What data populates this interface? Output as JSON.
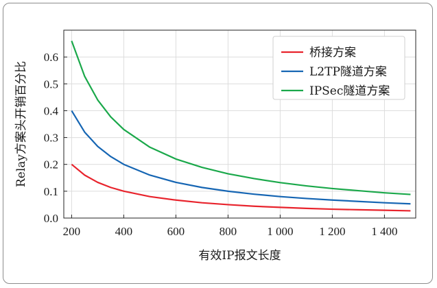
{
  "chart_data": {
    "type": "line",
    "xlabel": "有效IP报文长度",
    "ylabel": "Relay方案头开销百分比",
    "xlim": [
      170,
      1520
    ],
    "ylim": [
      0,
      0.7
    ],
    "xticks": [
      200,
      400,
      600,
      800,
      1000,
      1200,
      1400
    ],
    "xtick_labels": [
      "200",
      "400",
      "600",
      "800",
      "1 000",
      "1 200",
      "1 400"
    ],
    "yticks": [
      0.0,
      0.1,
      0.2,
      0.3,
      0.4,
      0.5,
      0.6
    ],
    "ytick_labels": [
      "0.0",
      "0.1",
      "0.2",
      "0.3",
      "0.4",
      "0.5",
      "0.6"
    ],
    "grid": true,
    "legend_position": "top-right",
    "x": [
      200,
      250,
      300,
      350,
      400,
      500,
      600,
      700,
      800,
      900,
      1000,
      1100,
      1200,
      1300,
      1400,
      1500
    ],
    "series": [
      {
        "name": "桥接方案",
        "color": "#e8232c",
        "values": [
          0.2,
          0.16,
          0.133,
          0.114,
          0.1,
          0.08,
          0.067,
          0.057,
          0.05,
          0.044,
          0.04,
          0.036,
          0.033,
          0.031,
          0.029,
          0.027
        ]
      },
      {
        "name": "L2TP隧道方案",
        "color": "#1565b3",
        "values": [
          0.4,
          0.32,
          0.267,
          0.229,
          0.2,
          0.16,
          0.133,
          0.114,
          0.1,
          0.089,
          0.08,
          0.073,
          0.067,
          0.062,
          0.057,
          0.053
        ]
      },
      {
        "name": "IPSec隧道方案",
        "color": "#1aa84a",
        "values": [
          0.66,
          0.528,
          0.44,
          0.377,
          0.33,
          0.264,
          0.22,
          0.189,
          0.165,
          0.147,
          0.132,
          0.12,
          0.11,
          0.102,
          0.094,
          0.088
        ]
      }
    ]
  }
}
